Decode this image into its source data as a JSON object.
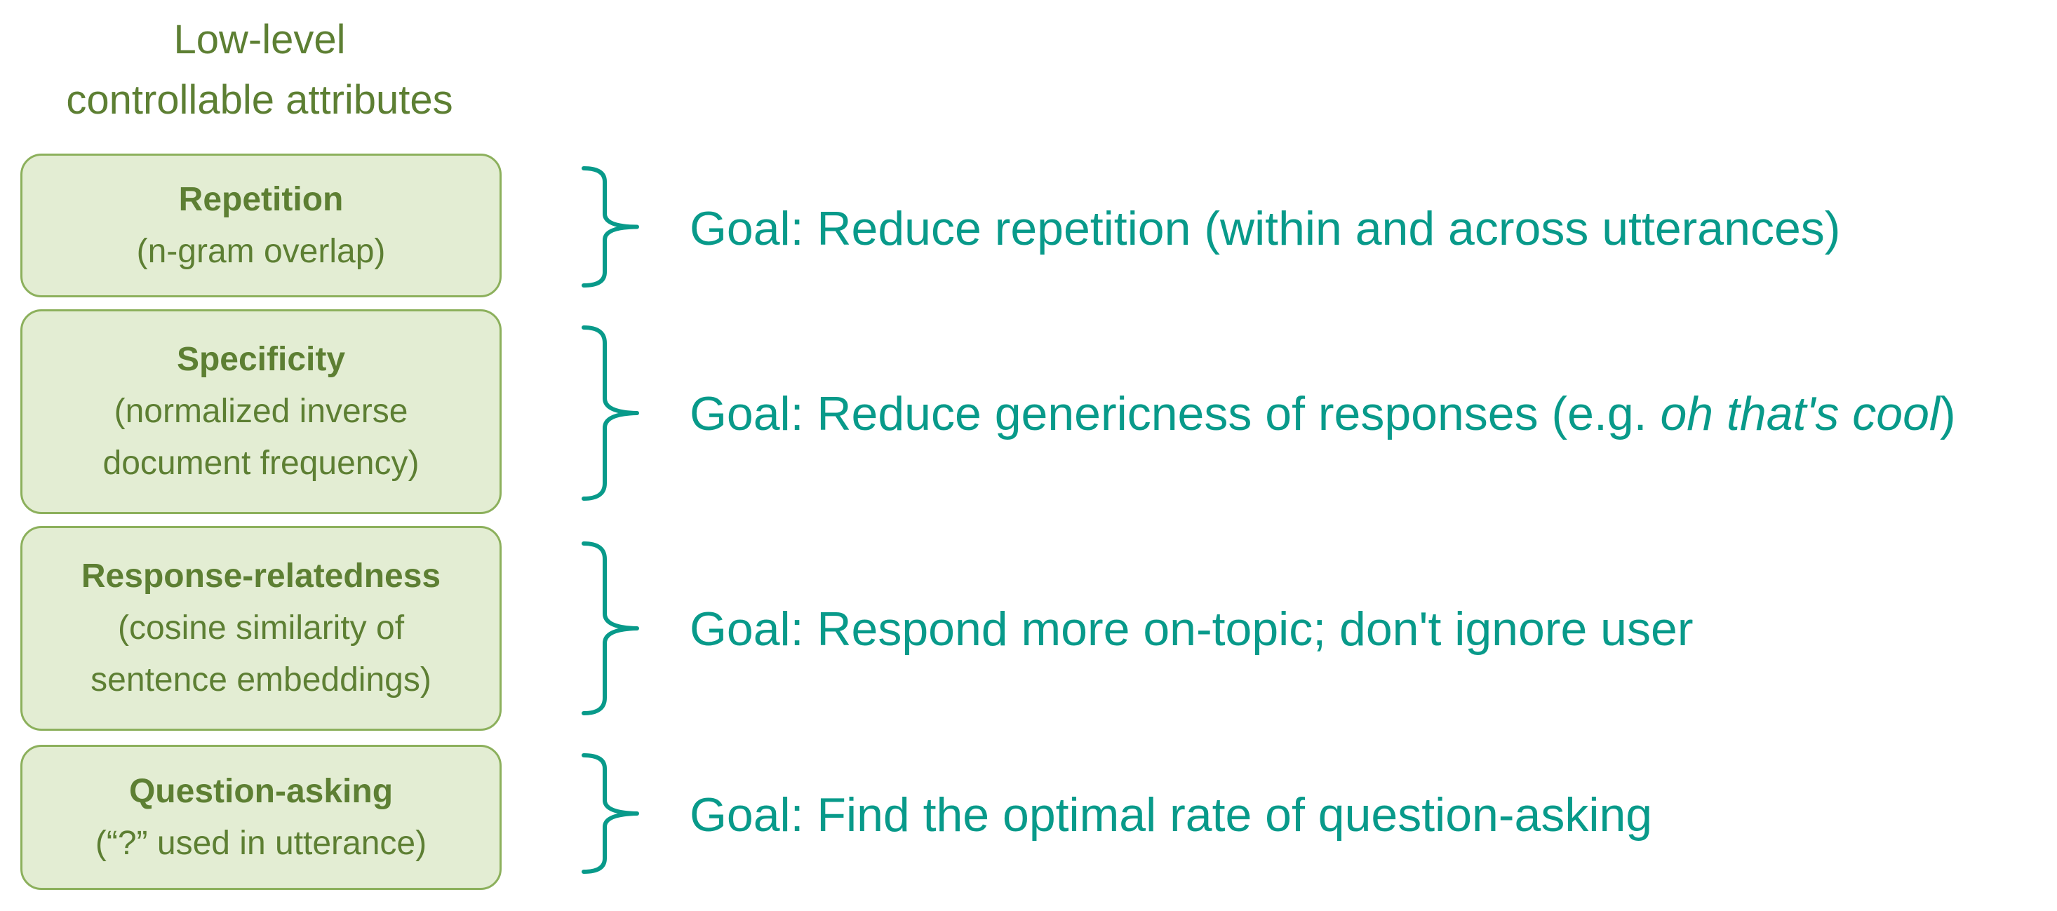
{
  "heading": {
    "line1": "Low-level",
    "line2": "controllable attributes"
  },
  "rows": [
    {
      "title": "Repetition",
      "desc": [
        "(n-gram overlap)"
      ],
      "goal": "Goal: Reduce repetition (within and across utterances)"
    },
    {
      "title": "Specificity",
      "desc": [
        "(normalized inverse",
        "document frequency)"
      ],
      "goal_pre": "Goal: Reduce genericness of responses (e.g. ",
      "goal_italic": "oh that's cool",
      "goal_post": ")"
    },
    {
      "title": "Response-relatedness",
      "desc": [
        "(cosine similarity of",
        "sentence embeddings)"
      ],
      "goal": "Goal: Respond more on-topic; don't ignore user"
    },
    {
      "title": "Question-asking",
      "desc": [
        "(“?” used in utterance)"
      ],
      "goal": "Goal: Find the optimal rate of question-asking"
    }
  ],
  "colors": {
    "attribute_text": "#5d7f33",
    "box_fill": "#e3edd3",
    "box_border": "#8cb05c",
    "goal_text": "#089a8a",
    "brace": "#089a8a"
  }
}
